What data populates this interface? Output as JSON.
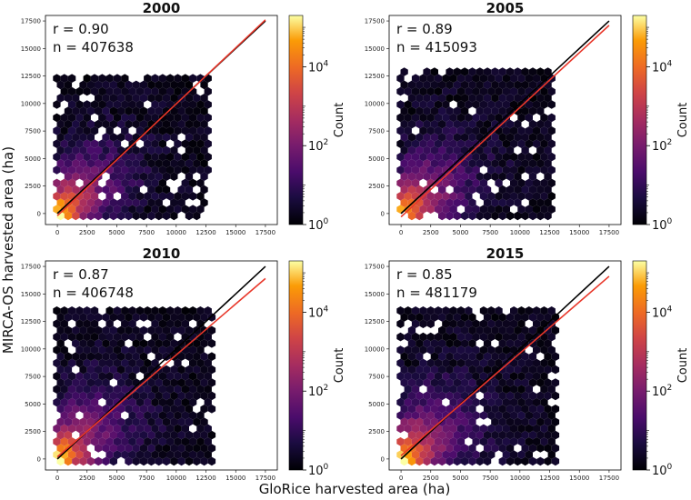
{
  "figure": {
    "xlabel": "GloRice harvested area (ha)",
    "ylabel": "MIRCA-OS harvested area (ha)",
    "colorbar_label": "Count",
    "colorbar_ticks": [
      {
        "base": "10",
        "exp": "0"
      },
      {
        "base": "10",
        "exp": "2"
      },
      {
        "base": "10",
        "exp": "4"
      }
    ]
  },
  "chart_data": [
    {
      "type": "hexbin",
      "title": "2000",
      "r_label": "r = 0.90",
      "n_label": "n = 407638",
      "xlim": [
        -1000,
        18500
      ],
      "ylim": [
        -1000,
        18000
      ],
      "xticks": [
        "0",
        "2500",
        "5000",
        "7500",
        "10000",
        "12500",
        "15000",
        "17500"
      ],
      "yticks": [
        "0",
        "2500",
        "5000",
        "7500",
        "10000",
        "12500",
        "15000",
        "17500"
      ],
      "one_to_one_line": {
        "x": [
          0,
          17500
        ],
        "y": [
          0,
          17500
        ],
        "color": "#000000"
      },
      "fit_line": {
        "x": [
          0,
          17500
        ],
        "y": [
          -200,
          17600
        ],
        "color": "#e8372a"
      },
      "spread": 0.2,
      "colorbar_range": [
        1,
        200000
      ]
    },
    {
      "type": "hexbin",
      "title": "2005",
      "r_label": "r = 0.89",
      "n_label": "n = 415093",
      "xlim": [
        -1000,
        18500
      ],
      "ylim": [
        -1000,
        18000
      ],
      "xticks": [
        "0",
        "2500",
        "5000",
        "7500",
        "10000",
        "12500",
        "15000",
        "17500"
      ],
      "yticks": [
        "0",
        "2500",
        "5000",
        "7500",
        "10000",
        "12500",
        "15000",
        "17500"
      ],
      "one_to_one_line": {
        "x": [
          0,
          17500
        ],
        "y": [
          0,
          17500
        ],
        "color": "#000000"
      },
      "fit_line": {
        "x": [
          0,
          17500
        ],
        "y": [
          -300,
          17100
        ],
        "color": "#e8372a"
      },
      "spread": 0.3,
      "colorbar_range": [
        1,
        200000
      ]
    },
    {
      "type": "hexbin",
      "title": "2010",
      "r_label": "r = 0.87",
      "n_label": "n = 406748",
      "xlim": [
        -1000,
        18500
      ],
      "ylim": [
        -1000,
        18000
      ],
      "xticks": [
        "0",
        "2500",
        "5000",
        "7500",
        "10000",
        "12500",
        "15000",
        "17500"
      ],
      "yticks": [
        "0",
        "2500",
        "5000",
        "7500",
        "10000",
        "12500",
        "15000",
        "17500"
      ],
      "one_to_one_line": {
        "x": [
          0,
          17500
        ],
        "y": [
          0,
          17500
        ],
        "color": "#000000"
      },
      "fit_line": {
        "x": [
          0,
          17500
        ],
        "y": [
          200,
          16400
        ],
        "color": "#e8372a"
      },
      "spread": 0.4,
      "colorbar_range": [
        1,
        200000
      ]
    },
    {
      "type": "hexbin",
      "title": "2015",
      "r_label": "r = 0.85",
      "n_label": "n = 481179",
      "xlim": [
        -1000,
        18500
      ],
      "ylim": [
        -1000,
        18000
      ],
      "xticks": [
        "0",
        "2500",
        "5000",
        "7500",
        "10000",
        "12500",
        "15000",
        "17500"
      ],
      "yticks": [
        "0",
        "2500",
        "5000",
        "7500",
        "10000",
        "12500",
        "15000",
        "17500"
      ],
      "one_to_one_line": {
        "x": [
          0,
          17500
        ],
        "y": [
          0,
          17500
        ],
        "color": "#000000"
      },
      "fit_line": {
        "x": [
          0,
          17500
        ],
        "y": [
          300,
          16600
        ],
        "color": "#e8372a"
      },
      "spread": 0.5,
      "colorbar_range": [
        1,
        200000
      ]
    }
  ]
}
